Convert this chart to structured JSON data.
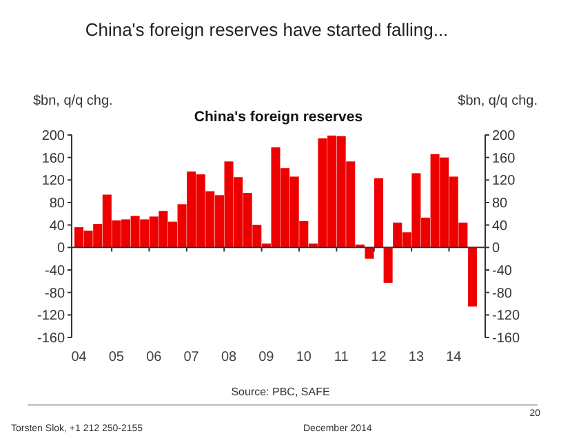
{
  "chart_data": {
    "type": "bar",
    "title": "China's foreign reserves",
    "subtitle": "China's foreign reserves have started falling...",
    "ylabel": "$bn, q/q chg.",
    "y2label": "$bn, q/q chg.",
    "categories": [
      "04",
      null,
      null,
      null,
      "05",
      null,
      null,
      null,
      "06",
      null,
      null,
      null,
      "07",
      null,
      null,
      null,
      "08",
      null,
      null,
      null,
      "09",
      null,
      null,
      null,
      "10",
      null,
      null,
      null,
      "11",
      null,
      null,
      null,
      "12",
      null,
      null,
      null,
      "13",
      null,
      null,
      null,
      "14",
      null,
      null
    ],
    "values": [
      36,
      30,
      42,
      94,
      48,
      50,
      56,
      50,
      55,
      65,
      46,
      77,
      135,
      130,
      100,
      93,
      153,
      125,
      97,
      40,
      7,
      178,
      141,
      126,
      47,
      7,
      194,
      199,
      198,
      153,
      5,
      -20,
      123,
      -63,
      44,
      27,
      132,
      53,
      166,
      160,
      126,
      44,
      -105
    ],
    "color": "#ee0000",
    "ylim": [
      -160,
      200
    ],
    "yticks": [
      -160,
      -120,
      -80,
      -40,
      0,
      40,
      80,
      120,
      160,
      200
    ],
    "y2lim": [
      -160,
      200
    ],
    "y2ticks": [
      -160,
      -120,
      -80,
      -40,
      0,
      40,
      80,
      120,
      160,
      200
    ],
    "annotations": [
      "Source: PBC, SAFE",
      "Torsten Slok, +1 212 250-2155",
      "December 2014",
      "20"
    ]
  }
}
